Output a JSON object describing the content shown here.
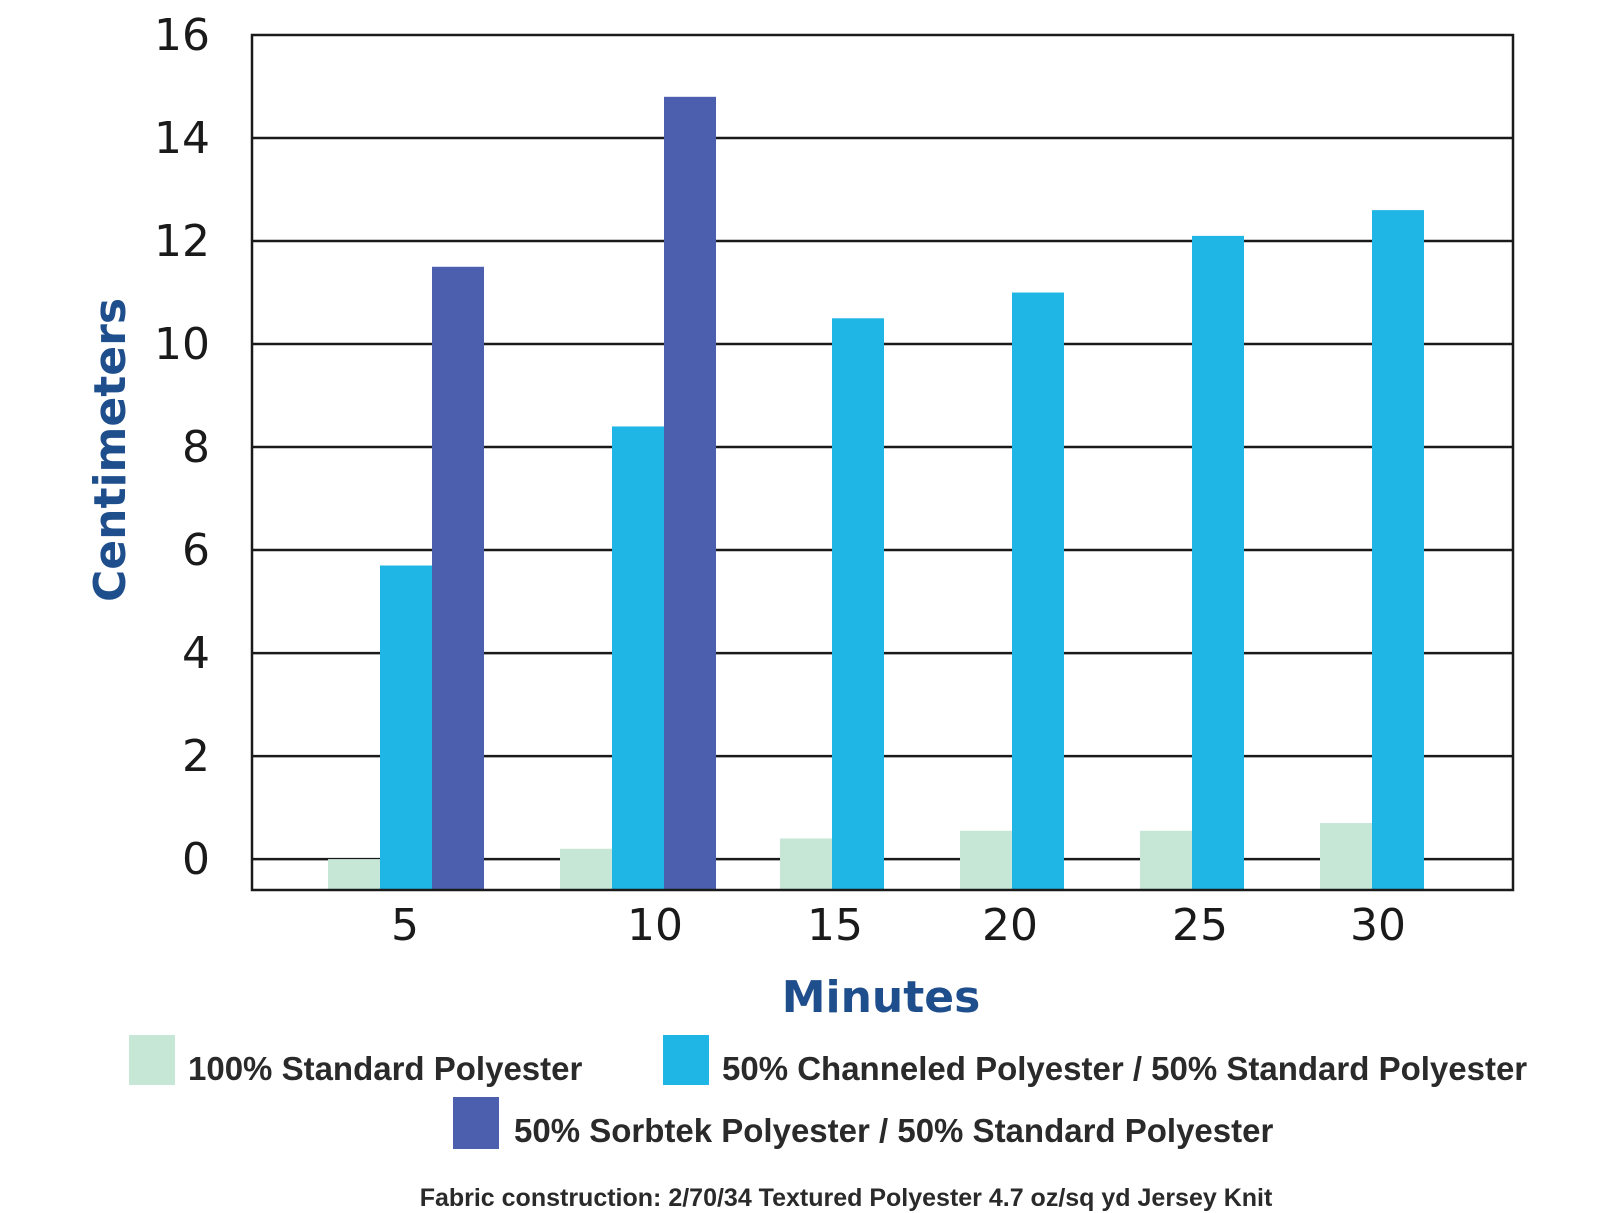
{
  "chart_data": {
    "type": "bar",
    "xlabel": "Minutes",
    "ylabel": "Centimeters",
    "categories": [
      "5",
      "10",
      "15",
      "20",
      "25",
      "30"
    ],
    "ylim": [
      -0.6,
      16
    ],
    "yticks": [
      0,
      2,
      4,
      6,
      8,
      10,
      12,
      14,
      16
    ],
    "grid": true,
    "legend_position": "bottom",
    "series": [
      {
        "name": "100% Standard Polyester",
        "color": "#c6e6d6",
        "values": [
          0,
          0.2,
          0.4,
          0.55,
          0.55,
          0.7
        ]
      },
      {
        "name": "50% Channeled Polyester / 50% Standard Polyester",
        "color": "#1fb6e6",
        "values": [
          5.7,
          8.4,
          10.5,
          11.0,
          12.1,
          12.6
        ]
      },
      {
        "name": "50% Sorbtek Polyester / 50% Standard Polyester",
        "color": "#4c5fae",
        "values": [
          11.5,
          14.8,
          null,
          null,
          null,
          null
        ]
      }
    ],
    "footnote": "Fabric construction: 2/70/34 Textured Polyester 4.7 oz/sq yd Jersey Knit"
  }
}
